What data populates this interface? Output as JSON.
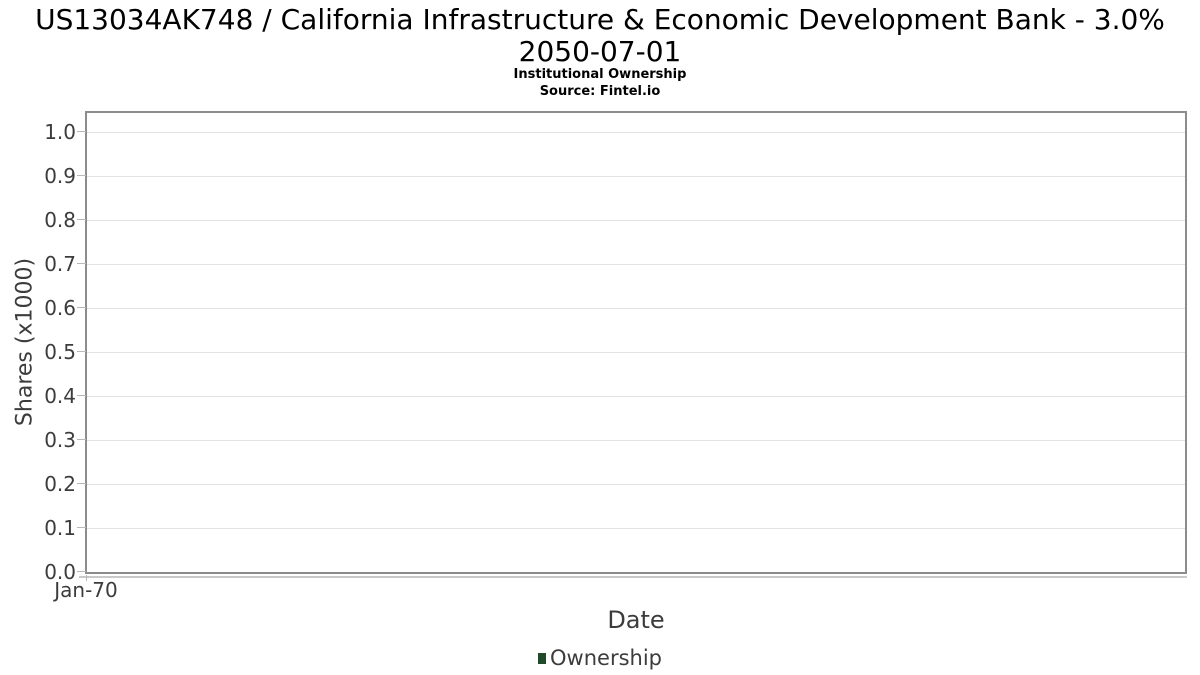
{
  "header": {
    "title_line1": "US13034AK748 / California Infrastructure & Economic Development Bank - 3.0%",
    "title_line2": "2050-07-01",
    "subtitle": "Institutional Ownership",
    "source": "Source: Fintel.io"
  },
  "chart_data": {
    "type": "line",
    "title": "US13034AK748 / California Infrastructure & Economic Development Bank - 3.0% 2050-07-01",
    "subtitle": "Institutional Ownership",
    "source_note": "Source: Fintel.io",
    "xlabel": "Date",
    "ylabel": "Shares (x1000)",
    "x_tick_labels": [
      "Jan-70"
    ],
    "y_tick_labels": [
      "0.0",
      "0.1",
      "0.2",
      "0.3",
      "0.4",
      "0.5",
      "0.6",
      "0.7",
      "0.8",
      "0.9",
      "1.0"
    ],
    "ylim": [
      0.0,
      1.043
    ],
    "grid": true,
    "legend": {
      "position": "bottom-center",
      "items": [
        {
          "label": "Ownership",
          "color": "#204a29"
        }
      ]
    },
    "series": [
      {
        "name": "Ownership",
        "x": [],
        "values": []
      }
    ]
  },
  "colors": {
    "background": "#ffffff",
    "title_text": "#000000",
    "axis_text": "#3c3c3c",
    "grid_line": "#e3e3e3",
    "plot_border": "#8c8c8c",
    "axis_shadow": "#c9c9c9",
    "tick_mark": "#b8b8b8",
    "legend_swatch": "#204a29"
  }
}
